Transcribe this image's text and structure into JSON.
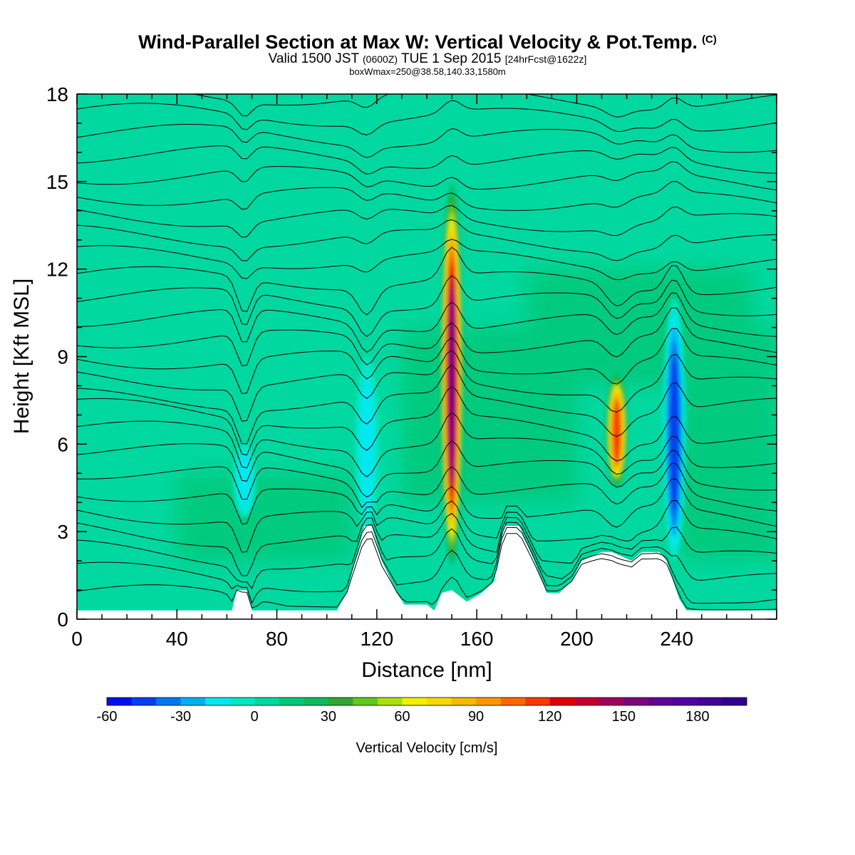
{
  "header": {
    "title": "Wind-Parallel Section at Max W: Vertical Velocity & Pot.Temp.",
    "copyright": "(C)",
    "valid_a": "Valid 1500 JST",
    "valid_zulu": "(0600Z)",
    "valid_b": "TUE 1 Sep 2015",
    "forecast": "[24hrFcst@1622z]",
    "box_info": "boxWmax=250@38.58,140.33,1580m"
  },
  "chart_data": {
    "type": "heatmap",
    "xlabel": "Distance [nm]",
    "ylabel": "Height [Kft MSL]",
    "xlim": [
      0,
      280
    ],
    "ylim": [
      0,
      18
    ],
    "x_ticks": [
      0,
      40,
      80,
      120,
      160,
      200,
      240
    ],
    "y_ticks": [
      0,
      3,
      6,
      9,
      12,
      15,
      18
    ],
    "colorbar": {
      "label": "Vertical Velocity [cm/s]",
      "range": [
        -60,
        200
      ],
      "step": 10,
      "tick_values": [
        -60,
        -30,
        0,
        30,
        60,
        90,
        120,
        150,
        180
      ],
      "colors": [
        "#0010f0",
        "#0040f0",
        "#0078f0",
        "#00b0f0",
        "#00e8f0",
        "#00e8c8",
        "#00d8a0",
        "#00c878",
        "#10b858",
        "#30a830",
        "#60c820",
        "#a8e010",
        "#f0f000",
        "#f8d800",
        "#f8b800",
        "#f89800",
        "#f86800",
        "#f83800",
        "#e00000",
        "#c00030",
        "#a00060",
        "#800080",
        "#600098",
        "#5000a0",
        "#400098",
        "#300090"
      ]
    },
    "background_value_cm_s": 0,
    "terrain_kft": [
      [
        0,
        0.3
      ],
      [
        62,
        0.3
      ],
      [
        64,
        1.0
      ],
      [
        68,
        1.0
      ],
      [
        70,
        0.3
      ],
      [
        104,
        0.3
      ],
      [
        108,
        0.9
      ],
      [
        112,
        2.2
      ],
      [
        115,
        3.2
      ],
      [
        118,
        3.2
      ],
      [
        122,
        2.0
      ],
      [
        128,
        0.9
      ],
      [
        131,
        0.5
      ],
      [
        140,
        0.5
      ],
      [
        143,
        0.3
      ],
      [
        146,
        0.9
      ],
      [
        150,
        1.0
      ],
      [
        156,
        0.6
      ],
      [
        162,
        0.9
      ],
      [
        167,
        1.3
      ],
      [
        171,
        3.2
      ],
      [
        177,
        3.2
      ],
      [
        183,
        2.0
      ],
      [
        188,
        0.9
      ],
      [
        193,
        0.9
      ],
      [
        198,
        1.3
      ],
      [
        202,
        2.0
      ],
      [
        210,
        2.3
      ],
      [
        214,
        2.3
      ],
      [
        222,
        2.0
      ],
      [
        226,
        2.3
      ],
      [
        233,
        2.3
      ],
      [
        236,
        2.0
      ],
      [
        241,
        0.7
      ],
      [
        244,
        0.3
      ],
      [
        280,
        0.3
      ]
    ],
    "velocity_features": [
      {
        "x": 150,
        "y_range": [
          1.8,
          15
        ],
        "peak_cm_s": 150
      },
      {
        "x": 216,
        "y_range": [
          4.5,
          8.5
        ],
        "peak_cm_s": 110
      },
      {
        "x": 239,
        "y_range": [
          2,
          11
        ],
        "peak_cm_s": -55
      },
      {
        "x": 116,
        "y_range": [
          3,
          9
        ],
        "peak_cm_s": -20
      },
      {
        "x": 67,
        "y_range": [
          3.5,
          6
        ],
        "peak_cm_s": -25
      }
    ],
    "isentrope_count": 26
  }
}
